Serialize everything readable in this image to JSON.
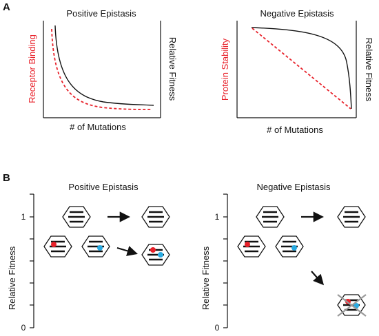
{
  "panel_a": {
    "letter": "A",
    "left_chart": {
      "title": "Positive Epistasis",
      "xlabel": "# of Mutations",
      "left_ylabel": "Receptor Binding",
      "right_ylabel": "Relative Fitness",
      "left_ylabel_color": "#e8212a"
    },
    "right_chart": {
      "title": "Negative Epistasis",
      "xlabel": "# of Mutations",
      "left_ylabel": "Protein Stability",
      "right_ylabel": "Relative Fitness",
      "left_ylabel_color": "#e8212a"
    }
  },
  "panel_b": {
    "letter": "B",
    "left_diagram": {
      "title": "Positive Epistasis",
      "ylabel": "Relative Fitness",
      "tick_one": "1",
      "tick_zero": "0"
    },
    "right_diagram": {
      "title": "Negative Epistasis",
      "ylabel": "Relative Fitness",
      "tick_one": "1",
      "tick_zero": "0"
    }
  },
  "colors": {
    "red_mutation": "#e8212a",
    "blue_mutation": "#29abe2",
    "cross_out": "#9a9a9a"
  }
}
